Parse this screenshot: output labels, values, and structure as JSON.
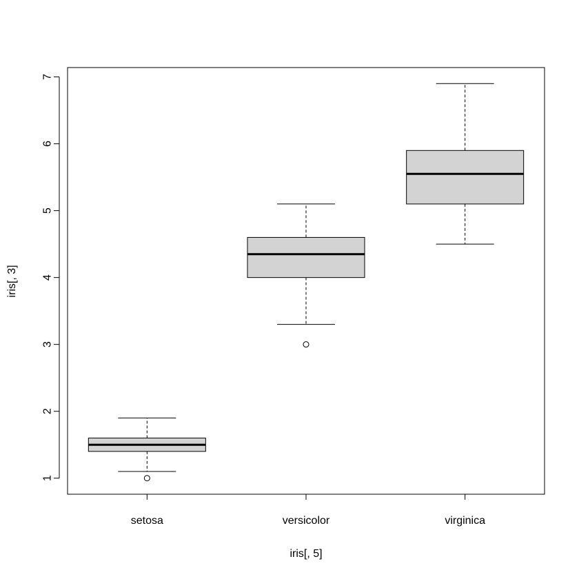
{
  "chart_data": {
    "type": "boxplot",
    "xlabel": "iris[, 5]",
    "ylabel": "iris[, 3]",
    "ylim": [
      0.76,
      7.14
    ],
    "yticks": [
      1,
      2,
      3,
      4,
      5,
      6,
      7
    ],
    "categories": [
      "setosa",
      "versicolor",
      "virginica"
    ],
    "boxes": [
      {
        "category": "setosa",
        "whisker_low": 1.1,
        "q1": 1.4,
        "median": 1.5,
        "q3": 1.6,
        "whisker_high": 1.9,
        "outliers": [
          1.0
        ]
      },
      {
        "category": "versicolor",
        "whisker_low": 3.3,
        "q1": 4.0,
        "median": 4.35,
        "q3": 4.6,
        "whisker_high": 5.1,
        "outliers": [
          3.0
        ]
      },
      {
        "category": "virginica",
        "whisker_low": 4.5,
        "q1": 5.1,
        "median": 5.55,
        "q3": 5.9,
        "whisker_high": 6.9,
        "outliers": []
      }
    ],
    "colors": {
      "box_fill": "#d3d3d3",
      "stroke": "#000000"
    },
    "grid": false,
    "legend": "none"
  }
}
